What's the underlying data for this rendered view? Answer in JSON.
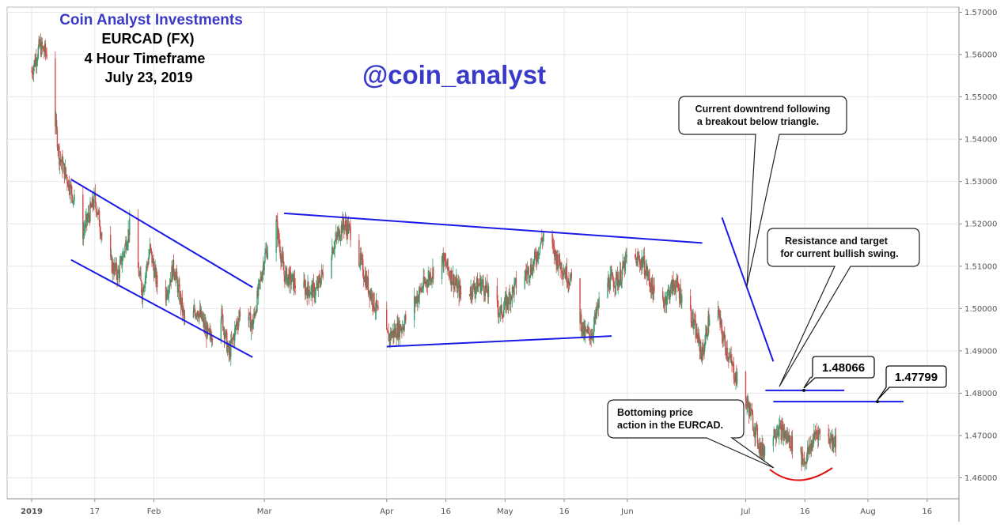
{
  "header": {
    "brand": "Coin Analyst Investments",
    "symbol": "EURCAD (FX)",
    "timeframe": "4 Hour Timeframe",
    "date": "July 23, 2019",
    "handle": "@coin_analyst"
  },
  "colors": {
    "brand": "#3a3ac8",
    "trendline": "#1a1ae6",
    "up_candle": "#3a9a6a",
    "down_candle": "#d04a4a",
    "bottom_arc": "#e01010",
    "grid": "#e6e6e6"
  },
  "annotations": {
    "downtrend": [
      "Current downtrend following",
      "a breakout below triangle."
    ],
    "resistance": [
      "Resistance and target",
      "for current bullish swing."
    ],
    "bottoming": [
      "Bottoming price",
      "action in the EURCAD."
    ]
  },
  "chart_data": {
    "type": "candlestick",
    "title": "EURCAD (FX)",
    "timeframe": "4 Hour",
    "y_ticks": [
      "1.57000",
      "1.56000",
      "1.55000",
      "1.54000",
      "1.53000",
      "1.52000",
      "1.51000",
      "1.50000",
      "1.49000",
      "1.48000",
      "1.47000",
      "1.46000"
    ],
    "ylim": [
      1.4535,
      1.5705
    ],
    "x_ticks": [
      "2019",
      "17",
      "Feb",
      "Mar",
      "Apr",
      "16",
      "May",
      "16",
      "Jun",
      "Jul",
      "16",
      "Aug",
      "16"
    ],
    "price_path": [
      {
        "t": "2019-01-01",
        "p": 1.556
      },
      {
        "t": "2019-01-03",
        "p": 1.562
      },
      {
        "t": "2019-01-05",
        "p": 1.56
      },
      {
        "t": "2019-01-08",
        "p": 1.536
      },
      {
        "t": "2019-01-11",
        "p": 1.528
      },
      {
        "t": "2019-01-14",
        "p": 1.518
      },
      {
        "t": "2019-01-17",
        "p": 1.526
      },
      {
        "t": "2019-01-20",
        "p": 1.512
      },
      {
        "t": "2019-01-23",
        "p": 1.508
      },
      {
        "t": "2019-01-26",
        "p": 1.52
      },
      {
        "t": "2019-01-29",
        "p": 1.504
      },
      {
        "t": "2019-01-31",
        "p": 1.514
      },
      {
        "t": "2019-02-03",
        "p": 1.5
      },
      {
        "t": "2019-02-06",
        "p": 1.51
      },
      {
        "t": "2019-02-09",
        "p": 1.496
      },
      {
        "t": "2019-02-12",
        "p": 1.5
      },
      {
        "t": "2019-02-15",
        "p": 1.493
      },
      {
        "t": "2019-02-18",
        "p": 1.499
      },
      {
        "t": "2019-02-20",
        "p": 1.489
      },
      {
        "t": "2019-02-23",
        "p": 1.5
      },
      {
        "t": "2019-02-26",
        "p": 1.496
      },
      {
        "t": "2019-03-01",
        "p": 1.512
      },
      {
        "t": "2019-03-04",
        "p": 1.52
      },
      {
        "t": "2019-03-06",
        "p": 1.508
      },
      {
        "t": "2019-03-10",
        "p": 1.505
      },
      {
        "t": "2019-03-14",
        "p": 1.504
      },
      {
        "t": "2019-03-18",
        "p": 1.514
      },
      {
        "t": "2019-03-21",
        "p": 1.52
      },
      {
        "t": "2019-03-23",
        "p": 1.518
      },
      {
        "t": "2019-03-27",
        "p": 1.506
      },
      {
        "t": "2019-04-01",
        "p": 1.493
      },
      {
        "t": "2019-04-05",
        "p": 1.496
      },
      {
        "t": "2019-04-10",
        "p": 1.505
      },
      {
        "t": "2019-04-15",
        "p": 1.512
      },
      {
        "t": "2019-04-20",
        "p": 1.503
      },
      {
        "t": "2019-04-25",
        "p": 1.506
      },
      {
        "t": "2019-04-30",
        "p": 1.499
      },
      {
        "t": "2019-05-04",
        "p": 1.506
      },
      {
        "t": "2019-05-08",
        "p": 1.51
      },
      {
        "t": "2019-05-11",
        "p": 1.518
      },
      {
        "t": "2019-05-14",
        "p": 1.512
      },
      {
        "t": "2019-05-18",
        "p": 1.506
      },
      {
        "t": "2019-05-21",
        "p": 1.494
      },
      {
        "t": "2019-05-23",
        "p": 1.494
      },
      {
        "t": "2019-05-26",
        "p": 1.506
      },
      {
        "t": "2019-05-30",
        "p": 1.507
      },
      {
        "t": "2019-06-01",
        "p": 1.512
      },
      {
        "t": "2019-06-05",
        "p": 1.511
      },
      {
        "t": "2019-06-09",
        "p": 1.5
      },
      {
        "t": "2019-06-13",
        "p": 1.506
      },
      {
        "t": "2019-06-17",
        "p": 1.499
      },
      {
        "t": "2019-06-20",
        "p": 1.489
      },
      {
        "t": "2019-06-23",
        "p": 1.504
      },
      {
        "t": "2019-06-25",
        "p": 1.494
      },
      {
        "t": "2019-06-28",
        "p": 1.485
      },
      {
        "t": "2019-07-02",
        "p": 1.476
      },
      {
        "t": "2019-07-05",
        "p": 1.466
      },
      {
        "t": "2019-07-09",
        "p": 1.472
      },
      {
        "t": "2019-07-12",
        "p": 1.469
      },
      {
        "t": "2019-07-16",
        "p": 1.464
      },
      {
        "t": "2019-07-19",
        "p": 1.471
      },
      {
        "t": "2019-07-23",
        "p": 1.469
      }
    ],
    "trendlines": [
      {
        "name": "falling-channel-upper",
        "from": {
          "t": "2019-01-11",
          "p": 1.5305
        },
        "to": {
          "t": "2019-02-26",
          "p": 1.505
        }
      },
      {
        "name": "falling-channel-lower",
        "from": {
          "t": "2019-01-11",
          "p": 1.5115
        },
        "to": {
          "t": "2019-02-26",
          "p": 1.4885
        }
      },
      {
        "name": "triangle-upper",
        "from": {
          "t": "2019-03-06",
          "p": 1.5225
        },
        "to": {
          "t": "2019-06-20",
          "p": 1.5155
        }
      },
      {
        "name": "triangle-lower",
        "from": {
          "t": "2019-04-01",
          "p": 1.491
        },
        "to": {
          "t": "2019-05-28",
          "p": 1.4935
        }
      },
      {
        "name": "downtrend-line",
        "from": {
          "t": "2019-06-25",
          "p": 1.5215
        },
        "to": {
          "t": "2019-07-08",
          "p": 1.4875
        }
      }
    ],
    "levels": [
      {
        "label": "1.48066",
        "value": 1.48066,
        "from": "2019-07-06",
        "to": "2019-07-26"
      },
      {
        "label": "1.47799",
        "value": 1.47799,
        "from": "2019-07-08",
        "to": "2019-08-10"
      }
    ]
  }
}
